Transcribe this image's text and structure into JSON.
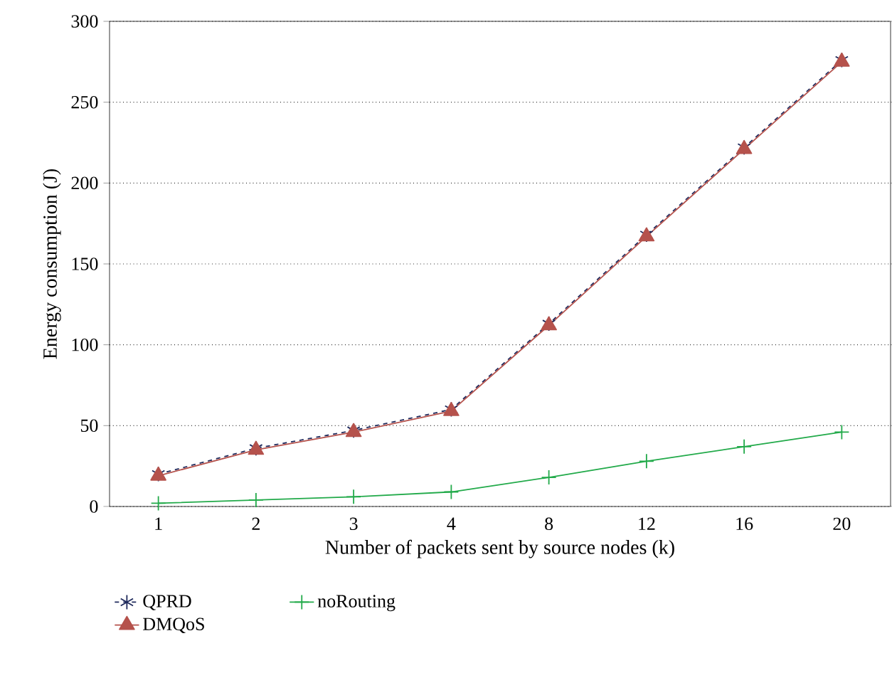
{
  "chart_data": {
    "type": "line",
    "xlabel": "Number of packets sent by source nodes (k)",
    "ylabel": "Energy consumption (J)",
    "categories": [
      "1",
      "2",
      "3",
      "4",
      "8",
      "12",
      "16",
      "20"
    ],
    "series": [
      {
        "name": "QPRD",
        "color": "#1f2a5c",
        "marker": "cross",
        "line_style": "dashed",
        "values": [
          20,
          36,
          47,
          60,
          113,
          168,
          222,
          276
        ]
      },
      {
        "name": "DMQoS",
        "color": "#b5524c",
        "marker": "triangle",
        "line_style": "solid",
        "values": [
          19,
          35,
          46,
          59,
          112,
          167,
          221,
          275
        ]
      },
      {
        "name": "noRouting",
        "color": "#22aa4a",
        "marker": "cross",
        "line_style": "solid",
        "values": [
          2,
          4,
          6,
          9,
          18,
          28,
          37,
          46
        ]
      }
    ],
    "ylim": [
      0,
      300
    ],
    "yticks": [
      0,
      50,
      100,
      150,
      200,
      250,
      300
    ],
    "grid": "y",
    "legend": "bottom"
  }
}
